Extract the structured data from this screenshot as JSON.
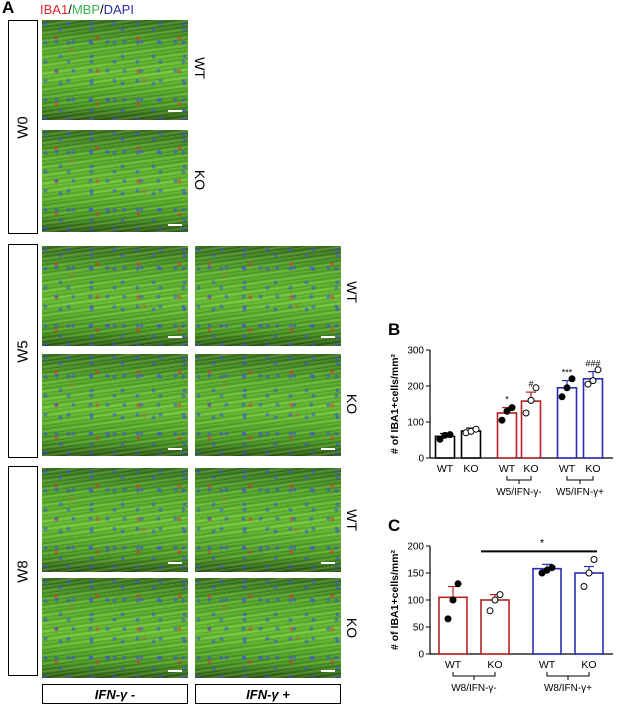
{
  "panels": {
    "a": "A",
    "b": "B",
    "c": "C"
  },
  "stain_legend": {
    "iba1": "IBA1",
    "sep1": "/",
    "mbp": "MBP",
    "sep2": "/",
    "dapi": "DAPI"
  },
  "stain_colors": {
    "iba1": "#e0262f",
    "mbp": "#36b34a",
    "dapi": "#2b2ba8"
  },
  "timepoints": {
    "w0": "W0",
    "w5": "W5",
    "w8": "W8"
  },
  "genotypes": {
    "wt": "WT",
    "ko": "KO"
  },
  "conditions": {
    "ifn_minus": "IFN-γ -",
    "ifn_plus": "IFN-γ +"
  },
  "bar_colors": {
    "w0": "#000000",
    "ifn_minus": "#b22222",
    "ifn_plus": "#2b2bb8"
  },
  "chart_data": [
    {
      "panel": "B",
      "type": "bar",
      "ylabel": "# of IBA1+cells/mm²",
      "ylim": [
        0,
        300
      ],
      "yticks": [
        0,
        100,
        200,
        300
      ],
      "categories": [
        "WT",
        "KO",
        "WT",
        "KO",
        "WT",
        "KO"
      ],
      "group_labels": [
        "W5/IFN-γ-",
        "W5/IFN-γ+"
      ],
      "values": [
        60,
        75,
        125,
        158,
        195,
        220
      ],
      "errors": [
        8,
        8,
        15,
        25,
        20,
        20
      ],
      "points": [
        [
          52,
          63,
          65
        ],
        [
          70,
          74,
          80
        ],
        [
          105,
          130,
          140
        ],
        [
          125,
          160,
          195
        ],
        [
          170,
          195,
          220
        ],
        [
          205,
          215,
          245
        ]
      ],
      "significance": [
        "",
        "",
        "*",
        "#",
        "***",
        "###"
      ],
      "grid": false
    },
    {
      "panel": "C",
      "type": "bar",
      "ylabel": "# of IBA1+cells/mm²",
      "ylim": [
        0,
        200
      ],
      "yticks": [
        0,
        50,
        100,
        150,
        200
      ],
      "categories": [
        "WT",
        "KO",
        "WT",
        "KO"
      ],
      "group_labels": [
        "W8/IFN-γ-",
        "W8/IFN-γ+"
      ],
      "values": [
        105,
        100,
        158,
        150
      ],
      "errors": [
        20,
        10,
        8,
        12
      ],
      "points": [
        [
          65,
          100,
          130
        ],
        [
          80,
          100,
          110
        ],
        [
          150,
          155,
          160
        ],
        [
          125,
          150,
          175
        ]
      ],
      "bracket_label": "*",
      "grid": false
    }
  ]
}
